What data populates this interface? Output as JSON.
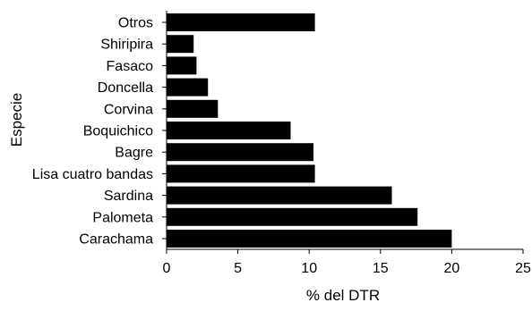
{
  "chart_data": {
    "type": "bar",
    "orientation": "horizontal",
    "categories": [
      "Carachama",
      "Palometa",
      "Sardina",
      "Lisa cuatro bandas",
      "Bagre",
      "Boquichico",
      "Corvina",
      "Doncella",
      "Fasaco",
      "Shiripira",
      "Otros"
    ],
    "values": [
      20.0,
      17.6,
      15.8,
      10.4,
      10.3,
      8.7,
      3.6,
      2.9,
      2.1,
      1.9,
      10.4
    ],
    "xlabel": "% del DTR",
    "ylabel": "Especie",
    "xlim": [
      0,
      25
    ],
    "xticks": [
      "0",
      "5",
      "10",
      "15",
      "20",
      "25"
    ],
    "grid": false,
    "legend": "none",
    "bar_color": "#000000"
  }
}
